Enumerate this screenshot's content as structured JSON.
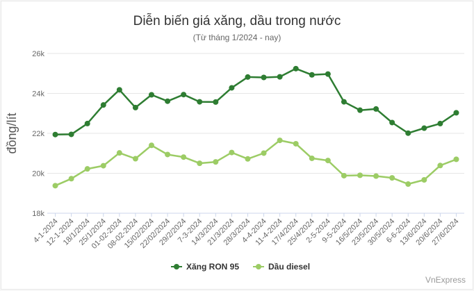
{
  "chart_data": {
    "type": "line",
    "title": "Diễn biến giá xăng, dầu trong nước",
    "subtitle": "(Từ tháng 1/2024 - nay)",
    "xlabel": "",
    "ylabel": "đồng/lít",
    "ylim": [
      18000,
      26000
    ],
    "yticks": [
      "18k",
      "20k",
      "22k",
      "24k",
      "26k"
    ],
    "ytick_values": [
      18000,
      20000,
      22000,
      24000,
      26000
    ],
    "categories": [
      "4-1-2024",
      "12-1-2024",
      "18/1/2024",
      "25/1/2024",
      "01-02-2024",
      "08-02-2024",
      "15/02/2024",
      "22/02/2024",
      "29/2/2024",
      "7-3-2024",
      "14/3/2024",
      "21/3/2024",
      "28/3/2024",
      "4-4-2024",
      "11-4-2024",
      "17/4/2024",
      "25/4/2024",
      "2-5-2024",
      "9-5-2024",
      "16/5/2024",
      "23/5/2024",
      "30/5/2024",
      "6-6-2024",
      "13/6/2024",
      "20/6/2024",
      "27/6/2024"
    ],
    "series": [
      {
        "name": "Xăng RON 95",
        "color": "#2e7d32",
        "values": [
          21940,
          21950,
          22490,
          23420,
          24180,
          23290,
          23930,
          23610,
          23940,
          23580,
          23570,
          24280,
          24820,
          24800,
          24830,
          25240,
          24930,
          24970,
          23580,
          23160,
          23220,
          22540,
          22010,
          22260,
          22490,
          23030
        ]
      },
      {
        "name": "Dầu diesel",
        "color": "#9ccc65",
        "values": [
          19380,
          19730,
          20220,
          20380,
          21020,
          20730,
          21400,
          20940,
          20810,
          20500,
          20570,
          21040,
          20720,
          21010,
          21650,
          21480,
          20750,
          20640,
          19880,
          19900,
          19860,
          19770,
          19460,
          19670,
          20390,
          20700
        ]
      }
    ],
    "grid": true,
    "legend": "bottom-center"
  },
  "watermark": "VnExpress"
}
